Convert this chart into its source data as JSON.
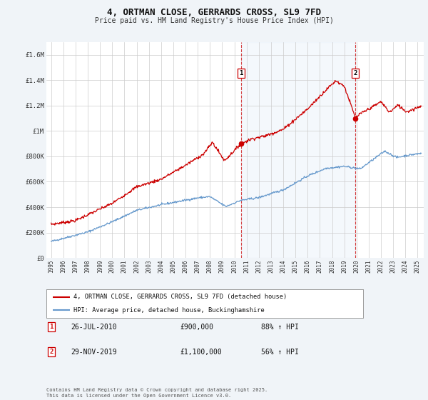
{
  "title": "4, ORTMAN CLOSE, GERRARDS CROSS, SL9 7FD",
  "subtitle": "Price paid vs. HM Land Registry's House Price Index (HPI)",
  "background_color": "#f0f4f8",
  "plot_background": "#ffffff",
  "grid_color": "#cccccc",
  "red_color": "#cc0000",
  "blue_color": "#6699cc",
  "ylim": [
    0,
    1700000
  ],
  "yticks": [
    0,
    200000,
    400000,
    600000,
    800000,
    1000000,
    1200000,
    1400000,
    1600000
  ],
  "ytick_labels": [
    "£0",
    "£200K",
    "£400K",
    "£600K",
    "£800K",
    "£1M",
    "£1.2M",
    "£1.4M",
    "£1.6M"
  ],
  "xlim_start": 1994.6,
  "xlim_end": 2025.5,
  "xticks": [
    1995,
    1996,
    1997,
    1998,
    1999,
    2000,
    2001,
    2002,
    2003,
    2004,
    2005,
    2006,
    2007,
    2008,
    2009,
    2010,
    2011,
    2012,
    2013,
    2014,
    2015,
    2016,
    2017,
    2018,
    2019,
    2020,
    2021,
    2022,
    2023,
    2024,
    2025
  ],
  "sale1_x": 2010.57,
  "sale1_y": 900000,
  "sale1_label": "1",
  "sale1_date": "26-JUL-2010",
  "sale1_price": "£900,000",
  "sale1_hpi": "88% ↑ HPI",
  "sale2_x": 2019.91,
  "sale2_y": 1100000,
  "sale2_label": "2",
  "sale2_date": "29-NOV-2019",
  "sale2_price": "£1,100,000",
  "sale2_hpi": "56% ↑ HPI",
  "legend_line1": "4, ORTMAN CLOSE, GERRARDS CROSS, SL9 7FD (detached house)",
  "legend_line2": "HPI: Average price, detached house, Buckinghamshire",
  "footer": "Contains HM Land Registry data © Crown copyright and database right 2025.\nThis data is licensed under the Open Government Licence v3.0."
}
